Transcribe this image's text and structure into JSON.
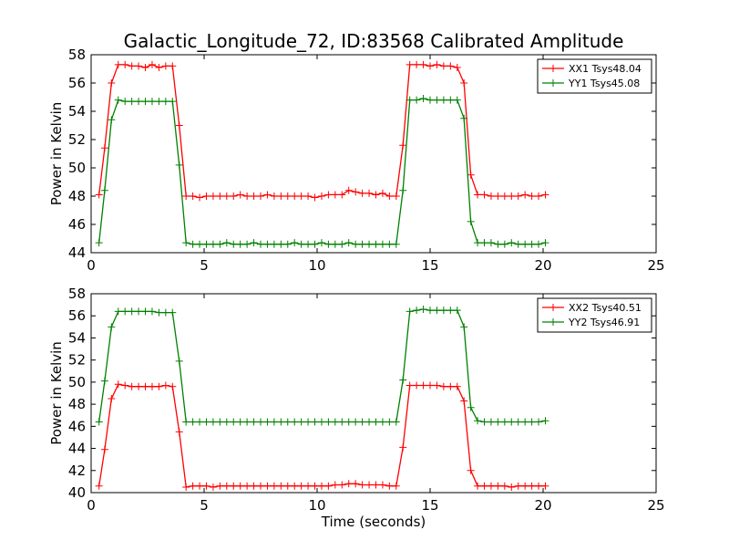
{
  "chart_data": {
    "title": "Galactic_Longitude_72, ID:83568 Calibrated Amplitude",
    "panels": [
      {
        "type": "line",
        "ylabel": "Power in Kelvin",
        "xlabel": "",
        "xlim": [
          0,
          25
        ],
        "ylim": [
          44,
          58
        ],
        "xticks": [
          "0",
          "5",
          "10",
          "15",
          "20",
          "25"
        ],
        "yticks": [
          "44",
          "46",
          "48",
          "50",
          "52",
          "54",
          "56",
          "58"
        ],
        "legend_position": "top-right",
        "series": [
          {
            "name": "XX1 Tsys48.04",
            "color": "#ff0000",
            "x": [
              0.35,
              0.6,
              0.9,
              1.2,
              1.5,
              1.8,
              2.1,
              2.4,
              2.7,
              3.0,
              3.3,
              3.6,
              3.9,
              4.2,
              4.5,
              4.8,
              5.1,
              5.4,
              5.7,
              6.0,
              6.3,
              6.6,
              6.9,
              7.2,
              7.5,
              7.8,
              8.1,
              8.4,
              8.7,
              9.0,
              9.3,
              9.6,
              9.9,
              10.2,
              10.5,
              10.8,
              11.1,
              11.4,
              11.7,
              12.0,
              12.3,
              12.6,
              12.9,
              13.2,
              13.5,
              13.8,
              14.1,
              14.4,
              14.7,
              15.0,
              15.3,
              15.6,
              15.9,
              16.2,
              16.5,
              16.8,
              17.1,
              17.4,
              17.7,
              18.0,
              18.3,
              18.6,
              18.9,
              19.2,
              19.5,
              19.8,
              20.1
            ],
            "y": [
              48.1,
              51.4,
              56.0,
              57.3,
              57.3,
              57.2,
              57.2,
              57.1,
              57.3,
              57.1,
              57.2,
              57.2,
              53.0,
              48.0,
              48.0,
              47.9,
              48.0,
              48.0,
              48.0,
              48.0,
              48.0,
              48.1,
              48.0,
              48.0,
              48.0,
              48.1,
              48.0,
              48.0,
              48.0,
              48.0,
              48.0,
              48.0,
              47.9,
              48.0,
              48.1,
              48.1,
              48.1,
              48.4,
              48.3,
              48.2,
              48.2,
              48.1,
              48.2,
              48.0,
              48.0,
              51.6,
              57.3,
              57.3,
              57.3,
              57.2,
              57.3,
              57.2,
              57.2,
              57.1,
              56.0,
              49.5,
              48.1,
              48.1,
              48.0,
              48.0,
              48.0,
              48.0,
              48.0,
              48.1,
              48.0,
              48.0,
              48.1
            ]
          },
          {
            "name": "YY1 Tsys45.08",
            "color": "#008000",
            "x": [
              0.35,
              0.6,
              0.9,
              1.2,
              1.5,
              1.8,
              2.1,
              2.4,
              2.7,
              3.0,
              3.3,
              3.6,
              3.9,
              4.2,
              4.5,
              4.8,
              5.1,
              5.4,
              5.7,
              6.0,
              6.3,
              6.6,
              6.9,
              7.2,
              7.5,
              7.8,
              8.1,
              8.4,
              8.7,
              9.0,
              9.3,
              9.6,
              9.9,
              10.2,
              10.5,
              10.8,
              11.1,
              11.4,
              11.7,
              12.0,
              12.3,
              12.6,
              12.9,
              13.2,
              13.5,
              13.8,
              14.1,
              14.4,
              14.7,
              15.0,
              15.3,
              15.6,
              15.9,
              16.2,
              16.5,
              16.8,
              17.1,
              17.4,
              17.7,
              18.0,
              18.3,
              18.6,
              18.9,
              19.2,
              19.5,
              19.8,
              20.1
            ],
            "y": [
              44.7,
              48.4,
              53.4,
              54.8,
              54.7,
              54.7,
              54.7,
              54.7,
              54.7,
              54.7,
              54.7,
              54.7,
              50.2,
              44.7,
              44.6,
              44.6,
              44.6,
              44.6,
              44.6,
              44.7,
              44.6,
              44.6,
              44.6,
              44.7,
              44.6,
              44.6,
              44.6,
              44.6,
              44.6,
              44.7,
              44.6,
              44.6,
              44.6,
              44.7,
              44.6,
              44.6,
              44.6,
              44.7,
              44.6,
              44.6,
              44.6,
              44.6,
              44.6,
              44.6,
              44.6,
              48.4,
              54.8,
              54.8,
              54.9,
              54.8,
              54.8,
              54.8,
              54.8,
              54.8,
              53.5,
              46.2,
              44.7,
              44.7,
              44.7,
              44.6,
              44.6,
              44.7,
              44.6,
              44.6,
              44.6,
              44.6,
              44.7
            ]
          }
        ]
      },
      {
        "type": "line",
        "ylabel": "Power in Kelvin",
        "xlabel": "Time (seconds)",
        "xlim": [
          0,
          25
        ],
        "ylim": [
          40,
          58
        ],
        "xticks": [
          "0",
          "5",
          "10",
          "15",
          "20",
          "25"
        ],
        "yticks": [
          "40",
          "42",
          "44",
          "46",
          "48",
          "50",
          "52",
          "54",
          "56",
          "58"
        ],
        "legend_position": "top-right",
        "series": [
          {
            "name": "XX2 Tsys40.51",
            "color": "#ff0000",
            "x": [
              0.35,
              0.6,
              0.9,
              1.2,
              1.5,
              1.8,
              2.1,
              2.4,
              2.7,
              3.0,
              3.3,
              3.6,
              3.9,
              4.2,
              4.5,
              4.8,
              5.1,
              5.4,
              5.7,
              6.0,
              6.3,
              6.6,
              6.9,
              7.2,
              7.5,
              7.8,
              8.1,
              8.4,
              8.7,
              9.0,
              9.3,
              9.6,
              9.9,
              10.2,
              10.5,
              10.8,
              11.1,
              11.4,
              11.7,
              12.0,
              12.3,
              12.6,
              12.9,
              13.2,
              13.5,
              13.8,
              14.1,
              14.4,
              14.7,
              15.0,
              15.3,
              15.6,
              15.9,
              16.2,
              16.5,
              16.8,
              17.1,
              17.4,
              17.7,
              18.0,
              18.3,
              18.6,
              18.9,
              19.2,
              19.5,
              19.8,
              20.1
            ],
            "y": [
              40.6,
              43.9,
              48.5,
              49.8,
              49.7,
              49.6,
              49.6,
              49.6,
              49.6,
              49.6,
              49.7,
              49.6,
              45.5,
              40.5,
              40.6,
              40.6,
              40.6,
              40.5,
              40.6,
              40.6,
              40.6,
              40.6,
              40.6,
              40.6,
              40.6,
              40.6,
              40.6,
              40.6,
              40.6,
              40.6,
              40.6,
              40.6,
              40.6,
              40.6,
              40.6,
              40.7,
              40.7,
              40.8,
              40.8,
              40.7,
              40.7,
              40.7,
              40.7,
              40.6,
              40.6,
              44.1,
              49.7,
              49.7,
              49.7,
              49.7,
              49.7,
              49.6,
              49.6,
              49.6,
              48.3,
              42.0,
              40.6,
              40.6,
              40.6,
              40.6,
              40.6,
              40.5,
              40.6,
              40.6,
              40.6,
              40.6,
              40.6
            ]
          },
          {
            "name": "YY2 Tsys46.91",
            "color": "#008000",
            "x": [
              0.35,
              0.6,
              0.9,
              1.2,
              1.5,
              1.8,
              2.1,
              2.4,
              2.7,
              3.0,
              3.3,
              3.6,
              3.9,
              4.2,
              4.5,
              4.8,
              5.1,
              5.4,
              5.7,
              6.0,
              6.3,
              6.6,
              6.9,
              7.2,
              7.5,
              7.8,
              8.1,
              8.4,
              8.7,
              9.0,
              9.3,
              9.6,
              9.9,
              10.2,
              10.5,
              10.8,
              11.1,
              11.4,
              11.7,
              12.0,
              12.3,
              12.6,
              12.9,
              13.2,
              13.5,
              13.8,
              14.1,
              14.4,
              14.7,
              15.0,
              15.3,
              15.6,
              15.9,
              16.2,
              16.5,
              16.8,
              17.1,
              17.4,
              17.7,
              18.0,
              18.3,
              18.6,
              18.9,
              19.2,
              19.5,
              19.8,
              20.1
            ],
            "y": [
              46.4,
              50.1,
              55.0,
              56.4,
              56.4,
              56.4,
              56.4,
              56.4,
              56.4,
              56.3,
              56.3,
              56.3,
              51.9,
              46.4,
              46.4,
              46.4,
              46.4,
              46.4,
              46.4,
              46.4,
              46.4,
              46.4,
              46.4,
              46.4,
              46.4,
              46.4,
              46.4,
              46.4,
              46.4,
              46.4,
              46.4,
              46.4,
              46.4,
              46.4,
              46.4,
              46.4,
              46.4,
              46.4,
              46.4,
              46.4,
              46.4,
              46.4,
              46.4,
              46.4,
              46.4,
              50.2,
              56.4,
              56.5,
              56.6,
              56.5,
              56.5,
              56.5,
              56.5,
              56.5,
              55.0,
              47.7,
              46.5,
              46.4,
              46.4,
              46.4,
              46.4,
              46.4,
              46.4,
              46.4,
              46.4,
              46.4,
              46.5
            ]
          }
        ]
      }
    ]
  }
}
